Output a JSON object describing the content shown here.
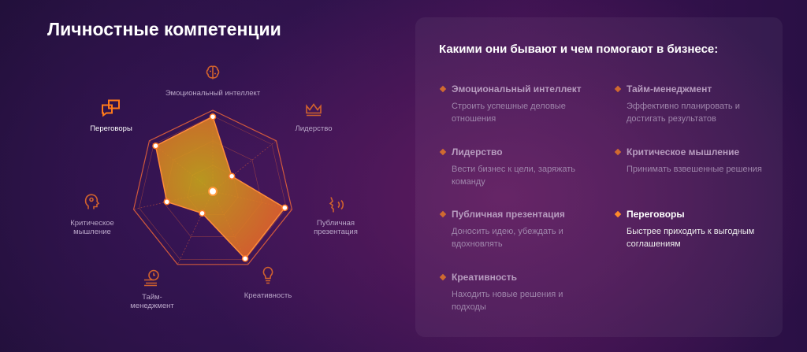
{
  "title": "Личностные компетенции",
  "chart_data": {
    "type": "radar",
    "axes": [
      "Эмоциональный интеллект",
      "Лидерство",
      "Публичная презентация",
      "Креативность",
      "Тайм-менеджмент",
      "Критическое мышление",
      "Переговоры"
    ],
    "values": [
      0.92,
      0.3,
      0.91,
      0.92,
      0.3,
      0.58,
      0.9
    ],
    "range": [
      0,
      1
    ],
    "colors": {
      "fill": "#f07a20",
      "stroke": "#ff8c3a",
      "grid": "#e0603a"
    }
  },
  "competencies": [
    {
      "label": "Эмоциональный интеллект",
      "icon": "brain-icon"
    },
    {
      "label": "Лидерство",
      "icon": "crown-icon"
    },
    {
      "label": "Публичная презентация",
      "icon": "speaking-head-icon"
    },
    {
      "label": "Креативность",
      "icon": "lightbulb-icon"
    },
    {
      "label": "Тайм-менеджмент",
      "icon": "clock-hand-icon"
    },
    {
      "label": "Критическое мышление",
      "icon": "head-gear-icon"
    },
    {
      "label": "Переговоры",
      "icon": "chat-bubbles-icon",
      "active": true
    }
  ],
  "panel": {
    "title": "Какими они бывают и чем помогают в бизнесе:",
    "items": [
      {
        "title": "Эмоциональный интеллект",
        "desc": "Строить успешные деловые отношения"
      },
      {
        "title": "Лидерство",
        "desc": "Вести бизнес к цели, заряжать команду"
      },
      {
        "title": "Публичная презентация",
        "desc": "Доносить идею, убеждать и вдохновлять"
      },
      {
        "title": "Креативность",
        "desc": "Находить новые решения и подходы"
      },
      {
        "title": "Тайм-менеджмент",
        "desc": "Эффективно планировать и достигать результатов"
      },
      {
        "title": "Критическое мышление",
        "desc": "Принимать взвешенные решения"
      },
      {
        "title": "Переговоры",
        "desc": "Быстрее приходить к выгодным соглашениям"
      }
    ]
  }
}
